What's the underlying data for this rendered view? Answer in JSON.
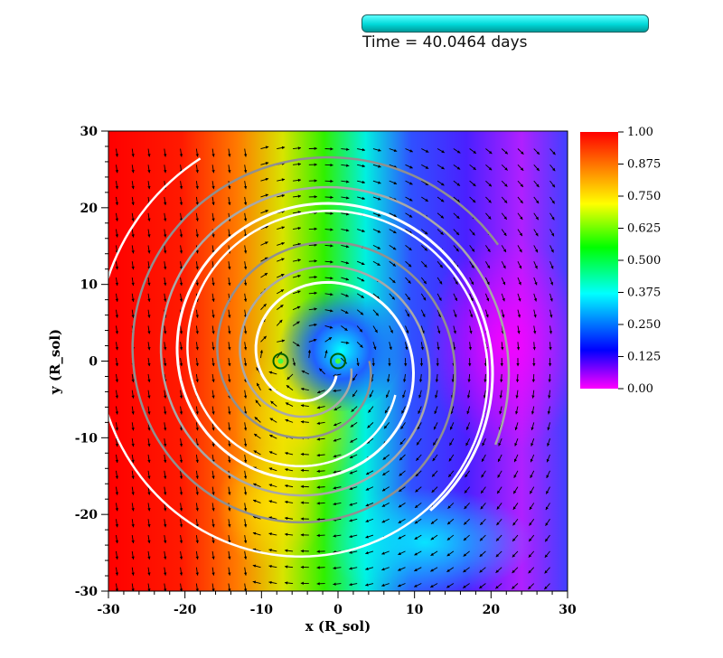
{
  "header": {
    "time_label": "Time = 40.0464 days",
    "time_bar_color": "#00e0e0"
  },
  "chart_data": {
    "type": "heatmap",
    "title": "",
    "xlabel": "x (R_sol)",
    "ylabel": "y (R_sol)",
    "xlim": [
      -30,
      30
    ],
    "ylim": [
      -30,
      30
    ],
    "x_ticks": [
      -30,
      -20,
      -10,
      0,
      10,
      20,
      30
    ],
    "y_ticks": [
      -30,
      -20,
      -10,
      0,
      10,
      20,
      30
    ],
    "x_tick_labels": [
      "-30",
      "-20",
      "-10",
      "0",
      "10",
      "20",
      "30"
    ],
    "y_tick_labels": [
      "-30",
      "-20",
      "-10",
      "0",
      "10",
      "20",
      "30"
    ],
    "colorbar": {
      "min": 0.0,
      "max": 1.0,
      "ticks": [
        1.0,
        0.875,
        0.75,
        0.625,
        0.5,
        0.375,
        0.25,
        0.125,
        0.0
      ],
      "tick_labels": [
        "1.00",
        "0.875",
        "0.750",
        "0.625",
        "0.500",
        "0.375",
        "0.250",
        "0.125",
        "0.00"
      ],
      "colormap": [
        "#ff00ff",
        "#0000ff",
        "#00ffff",
        "#00ff00",
        "#ffff00",
        "#ff8000",
        "#ff0000"
      ]
    },
    "point_masses": [
      {
        "x": -7.5,
        "y": 0.0
      },
      {
        "x": 0.0,
        "y": 0.0
      }
    ],
    "overlays": [
      "velocity-arrows",
      "white-contours",
      "gray-contours"
    ],
    "grid": false
  }
}
